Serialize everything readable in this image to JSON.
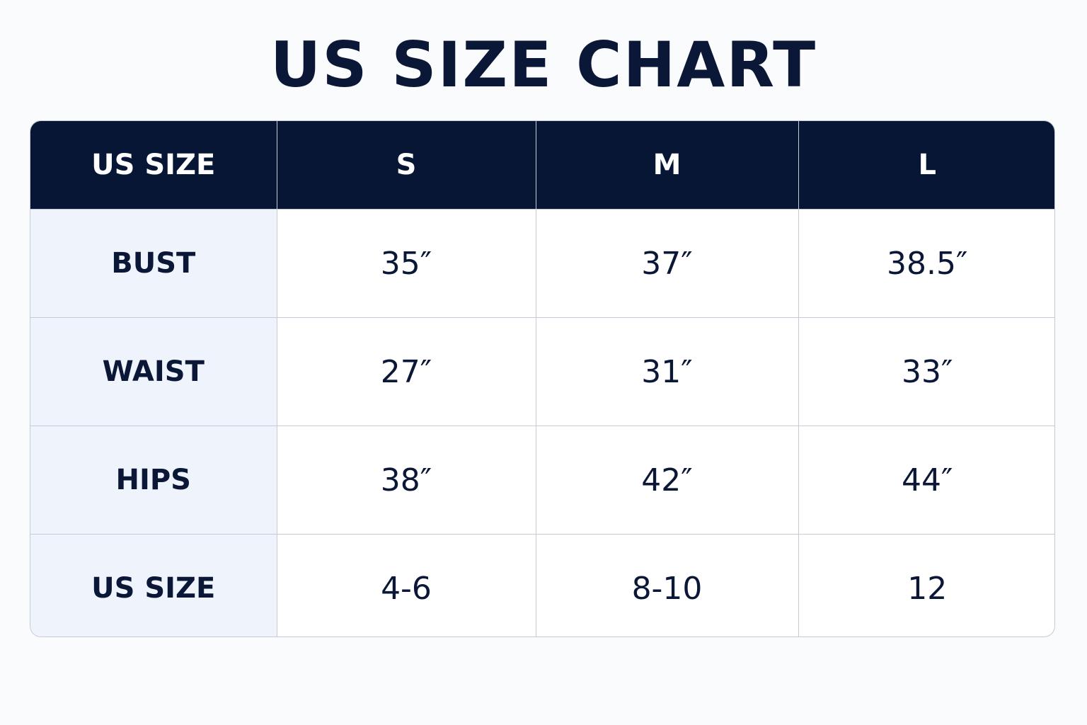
{
  "title": "US SIZE CHART",
  "table": {
    "header": [
      "US SIZE",
      "S",
      "M",
      "L"
    ],
    "rows": [
      [
        "BUST",
        "35″",
        "37″",
        "38.5″"
      ],
      [
        "WAIST",
        "27″",
        "31″",
        "33″"
      ],
      [
        "HIPS",
        "38″",
        "42″",
        "44″"
      ],
      [
        "US SIZE",
        "4-6",
        "8-10",
        "12"
      ]
    ]
  }
}
